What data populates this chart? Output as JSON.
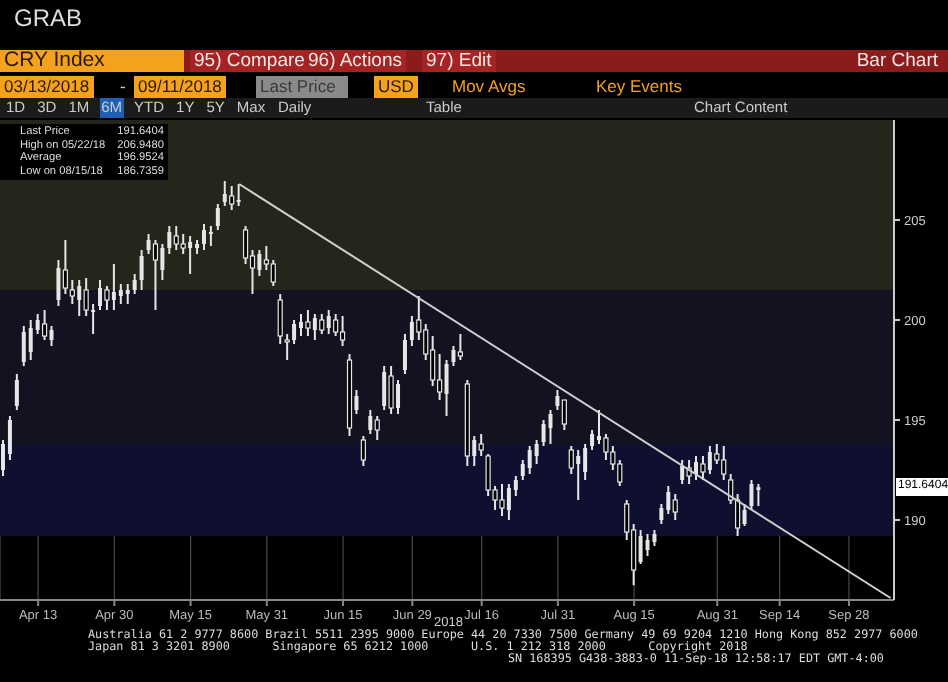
{
  "chart_data": {
    "type": "candlestick",
    "title": "CRY Index",
    "categories": [
      null,
      null,
      null,
      null,
      null,
      "Apr 13",
      null,
      null,
      null,
      null,
      null,
      null,
      null,
      null,
      null,
      null,
      "Apr 30",
      null,
      null,
      null,
      null,
      null,
      null,
      null,
      null,
      null,
      null,
      "May 15",
      null,
      null,
      null,
      null,
      null,
      null,
      null,
      null,
      null,
      null,
      "May 31",
      null,
      null,
      null,
      null,
      null,
      null,
      null,
      null,
      null,
      null,
      "Jun 15",
      null,
      null,
      null,
      null,
      null,
      null,
      null,
      null,
      null,
      "Jun 29",
      null,
      null,
      null,
      null,
      null,
      null,
      null,
      null,
      null,
      "Jul 16",
      null,
      null,
      null,
      null,
      null,
      null,
      null,
      null,
      null,
      null,
      "Jul 31",
      null,
      null,
      null,
      null,
      null,
      null,
      null,
      null,
      null,
      null,
      "Aug 15",
      null,
      null,
      null,
      null,
      null,
      null,
      null,
      null,
      null,
      null,
      null,
      "Aug 31",
      null,
      null,
      null,
      null,
      null,
      null,
      null,
      null,
      "Sep 14",
      null,
      null,
      null,
      null,
      null,
      null,
      null,
      null,
      null,
      "Sep 28",
      null,
      null,
      null,
      null,
      null,
      null
    ],
    "color": "#e6e6e6",
    "ohlc": [
      [
        192.5,
        194.0,
        192.2,
        193.8
      ],
      [
        193.3,
        195.2,
        193.0,
        195.0
      ],
      [
        195.7,
        197.3,
        195.5,
        197.0
      ],
      [
        197.9,
        199.7,
        197.7,
        199.4
      ],
      [
        198.4,
        200.0,
        198.0,
        199.6
      ],
      [
        199.5,
        200.3,
        199.3,
        200.0
      ],
      [
        199.8,
        200.5,
        199.0,
        199.2
      ],
      [
        199.0,
        199.7,
        198.7,
        199.5
      ],
      [
        201.0,
        203.0,
        200.7,
        202.6
      ],
      [
        202.5,
        204.0,
        201.3,
        201.6
      ],
      [
        201.5,
        202.0,
        200.8,
        201.2
      ],
      [
        201.0,
        202.0,
        200.2,
        201.7
      ],
      [
        201.5,
        202.1,
        200.2,
        200.5
      ],
      [
        200.4,
        200.8,
        199.3,
        200.5
      ],
      [
        200.7,
        202.0,
        200.5,
        201.6
      ],
      [
        201.5,
        201.7,
        200.5,
        201.0
      ],
      [
        201.0,
        202.8,
        200.5,
        201.4
      ],
      [
        201.2,
        201.8,
        200.8,
        201.5
      ],
      [
        201.3,
        201.8,
        200.8,
        201.5
      ],
      [
        201.5,
        202.3,
        201.3,
        202.0
      ],
      [
        202.0,
        203.5,
        201.5,
        203.2
      ],
      [
        203.5,
        204.3,
        203.3,
        204.0
      ],
      [
        203.8,
        204.0,
        200.5,
        203.0
      ],
      [
        202.5,
        203.8,
        202.0,
        203.6
      ],
      [
        203.6,
        204.7,
        203.3,
        204.4
      ],
      [
        204.2,
        204.7,
        203.5,
        203.8
      ],
      [
        203.8,
        204.3,
        203.3,
        203.6
      ],
      [
        203.6,
        204.2,
        202.3,
        203.9
      ],
      [
        203.6,
        204.0,
        203.3,
        203.8
      ],
      [
        203.8,
        204.8,
        203.5,
        204.5
      ],
      [
        204.3,
        204.7,
        203.7,
        204.4
      ],
      [
        204.7,
        205.8,
        204.5,
        205.6
      ],
      [
        205.9,
        206.95,
        205.7,
        206.3
      ],
      [
        206.2,
        206.7,
        205.5,
        205.8
      ],
      [
        205.9,
        206.8,
        205.7,
        206.0
      ],
      [
        204.5,
        204.7,
        202.8,
        203.1
      ],
      [
        203.2,
        203.5,
        201.3,
        202.6
      ],
      [
        202.5,
        203.5,
        202.2,
        203.3
      ],
      [
        203.0,
        203.7,
        202.5,
        202.8
      ],
      [
        202.8,
        203.0,
        201.7,
        201.9
      ],
      [
        201.0,
        201.3,
        198.8,
        199.2
      ],
      [
        199.0,
        199.3,
        198.0,
        198.9
      ],
      [
        199.0,
        200.0,
        198.8,
        199.8
      ],
      [
        199.6,
        200.3,
        199.2,
        199.9
      ],
      [
        199.9,
        200.5,
        199.2,
        199.6
      ],
      [
        199.5,
        200.3,
        199.0,
        200.1
      ],
      [
        200.0,
        200.3,
        199.3,
        199.5
      ],
      [
        199.6,
        200.5,
        199.3,
        200.2
      ],
      [
        200.0,
        200.3,
        199.2,
        199.4
      ],
      [
        199.4,
        200.2,
        198.7,
        199.0
      ],
      [
        198.0,
        198.3,
        194.2,
        194.6
      ],
      [
        195.5,
        196.5,
        195.3,
        196.2
      ],
      [
        194.0,
        194.2,
        192.7,
        193.0
      ],
      [
        194.5,
        195.5,
        194.3,
        195.2
      ],
      [
        195.0,
        195.2,
        194.0,
        194.5
      ],
      [
        195.7,
        197.7,
        195.5,
        197.4
      ],
      [
        197.2,
        197.7,
        195.3,
        195.6
      ],
      [
        195.6,
        197.0,
        195.3,
        196.8
      ],
      [
        197.5,
        199.3,
        197.3,
        199.0
      ],
      [
        199.0,
        200.2,
        198.7,
        199.9
      ],
      [
        200.0,
        201.2,
        199.0,
        199.4
      ],
      [
        199.5,
        199.8,
        198.0,
        198.3
      ],
      [
        198.5,
        199.2,
        196.7,
        197.0
      ],
      [
        197.0,
        198.3,
        196.0,
        196.4
      ],
      [
        196.3,
        198.0,
        195.2,
        197.8
      ],
      [
        197.9,
        198.7,
        197.7,
        198.5
      ],
      [
        198.4,
        199.3,
        198.0,
        198.2
      ],
      [
        196.8,
        197.0,
        192.7,
        193.2
      ],
      [
        193.2,
        194.2,
        192.7,
        194.0
      ],
      [
        193.8,
        194.3,
        193.2,
        193.5
      ],
      [
        193.2,
        193.3,
        191.2,
        191.5
      ],
      [
        191.5,
        191.7,
        190.5,
        191.0
      ],
      [
        191.0,
        191.8,
        190.2,
        190.6
      ],
      [
        190.5,
        191.8,
        190.0,
        191.6
      ],
      [
        191.5,
        192.2,
        191.2,
        192.0
      ],
      [
        192.2,
        193.0,
        192.0,
        192.8
      ],
      [
        192.6,
        193.7,
        192.3,
        193.5
      ],
      [
        193.2,
        194.0,
        192.8,
        193.8
      ],
      [
        193.9,
        195.0,
        193.7,
        194.8
      ],
      [
        194.6,
        195.5,
        193.8,
        195.3
      ],
      [
        195.7,
        196.5,
        195.5,
        196.2
      ],
      [
        196.0,
        196.0,
        194.5,
        194.8
      ],
      [
        193.5,
        193.7,
        192.3,
        192.6
      ],
      [
        192.8,
        193.5,
        191.0,
        193.2
      ],
      [
        192.4,
        193.8,
        192.0,
        193.6
      ],
      [
        193.7,
        194.5,
        193.5,
        194.3
      ],
      [
        194.0,
        195.5,
        193.8,
        194.2
      ],
      [
        194.1,
        194.3,
        193.0,
        193.4
      ],
      [
        193.4,
        193.7,
        192.5,
        192.8
      ],
      [
        192.8,
        193.0,
        191.7,
        191.9
      ],
      [
        190.8,
        191.0,
        189.0,
        189.4
      ],
      [
        189.5,
        189.8,
        186.74,
        187.5
      ],
      [
        187.9,
        189.5,
        187.8,
        189.2
      ],
      [
        188.5,
        189.3,
        188.2,
        189.0
      ],
      [
        188.9,
        189.5,
        188.7,
        189.3
      ],
      [
        190.0,
        190.8,
        189.8,
        190.6
      ],
      [
        190.5,
        191.7,
        190.3,
        191.4
      ],
      [
        191.0,
        191.3,
        190.0,
        190.4
      ],
      [
        192.0,
        193.0,
        191.8,
        192.7
      ],
      [
        192.6,
        193.0,
        191.8,
        192.2
      ],
      [
        192.3,
        193.2,
        192.0,
        192.9
      ],
      [
        192.8,
        193.2,
        192.0,
        192.4
      ],
      [
        192.5,
        193.7,
        192.3,
        193.4
      ],
      [
        193.3,
        193.8,
        192.8,
        193.0
      ],
      [
        193.0,
        193.7,
        192.0,
        192.3
      ],
      [
        192.0,
        192.3,
        190.8,
        191.0
      ],
      [
        191.0,
        191.3,
        189.2,
        189.6
      ],
      [
        189.8,
        190.8,
        189.7,
        190.5
      ],
      [
        190.7,
        192.0,
        190.5,
        191.8
      ],
      [
        191.5,
        191.8,
        190.7,
        191.64
      ],
      null,
      null,
      null,
      null,
      null,
      null,
      null,
      null,
      null,
      null,
      null,
      null,
      null,
      null,
      null,
      null,
      null,
      null,
      null
    ],
    "series": [
      {
        "type": "line",
        "color": "#d0d0d0",
        "values": [
          null,
          null,
          null,
          null,
          null,
          null,
          null,
          null,
          null,
          null,
          null,
          null,
          null,
          null,
          null,
          null,
          null,
          null,
          null,
          null,
          null,
          null,
          null,
          null,
          null,
          null,
          null,
          null,
          null,
          null,
          null,
          null,
          null,
          null,
          206.8,
          null,
          null,
          null,
          null,
          null,
          null,
          null,
          null,
          null,
          null,
          null,
          null,
          null,
          null,
          null,
          null,
          null,
          null,
          null,
          null,
          null,
          null,
          null,
          null,
          null,
          null,
          null,
          null,
          null,
          null,
          null,
          null,
          null,
          null,
          null,
          null,
          null,
          null,
          null,
          null,
          null,
          null,
          null,
          null,
          null,
          null,
          null,
          null,
          null,
          null,
          null,
          null,
          null,
          null,
          null,
          null,
          null,
          null,
          null,
          null,
          null,
          null,
          null,
          null,
          null,
          null,
          null,
          null,
          null,
          null,
          null,
          null,
          null,
          null,
          null,
          null,
          null,
          null,
          null,
          null,
          null,
          null,
          null,
          null,
          null,
          null,
          null,
          null,
          null,
          null,
          null,
          null,
          null,
          186.1
        ]
      }
    ],
    "ylim": [
      186,
      210
    ],
    "yticks": [
      190,
      195,
      200,
      205
    ],
    "grid": true,
    "bands": [
      {
        "axis": "y",
        "from": 201.5,
        "to": 210,
        "color": "#25251c"
      },
      {
        "axis": "y",
        "from": 193.8,
        "to": 201.5,
        "color": "#121220"
      },
      {
        "axis": "y",
        "from": 189.2,
        "to": 193.8,
        "color": "#0f1030"
      }
    ],
    "annotations": [
      "GRAB",
      "95) Compare",
      "96) Actions",
      "97) Edit",
      "Bar Chart",
      "03/13/2018",
      "-",
      "09/11/2018",
      "Last Price",
      "USD",
      "Mov Avgs",
      "Key Events",
      "1D",
      "3D",
      "1M",
      "6M",
      "YTD",
      "1Y",
      "5Y",
      "Max",
      "Daily",
      "Table",
      "Chart Content",
      "Last Price",
      "191.6404",
      "High on 05/22/18",
      "206.9480",
      "Average",
      "196.9524",
      "Low on 08/15/18",
      "186.7359",
      "2018",
      "Australia 61 2 9777 8600 Brazil 5511 2395 9000 Europe 44 20 7330 7500 Germany 49 69 9204 1210 Hong Kong 852 2977 6000",
      "Japan 81 3 3201 8900      Singapore 65 6212 1000      U.S. 1 212 318 2000      Copyright 2018",
      "SN 168395 G438-3883-0 11-Sep-18 12:58:17 EDT GMT-4:00",
      {
        "text": "191.6404",
        "y": 191.6404
      }
    ]
  }
}
